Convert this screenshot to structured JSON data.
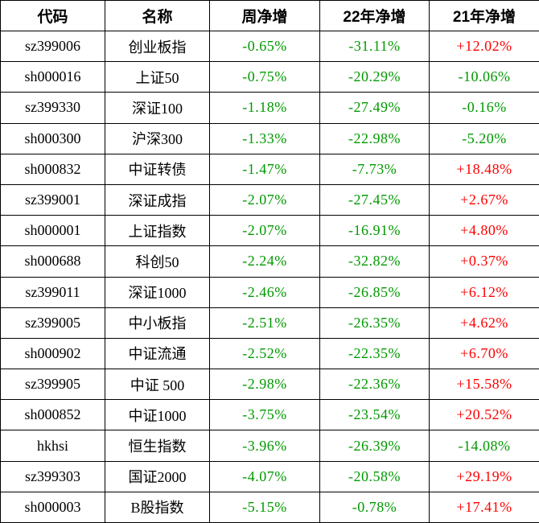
{
  "colors": {
    "positive": "#fe0000",
    "negative": "#009900",
    "text": "#000000",
    "border": "#000000",
    "background": "#ffffff"
  },
  "chart_data": {
    "type": "table",
    "title": "",
    "columns": [
      "代码",
      "名称",
      "周净增",
      "22年净增",
      "21年净增"
    ],
    "rows": [
      [
        "sz399006",
        "创业板指",
        "-0.65%",
        "-31.11%",
        "+12.02%"
      ],
      [
        "sh000016",
        "上证50",
        "-0.75%",
        "-20.29%",
        "-10.06%"
      ],
      [
        "sz399330",
        "深证100",
        "-1.18%",
        "-27.49%",
        "-0.16%"
      ],
      [
        "sh000300",
        "沪深300",
        "-1.33%",
        "-22.98%",
        "-5.20%"
      ],
      [
        "sh000832",
        "中证转债",
        "-1.47%",
        "-7.73%",
        "+18.48%"
      ],
      [
        "sz399001",
        "深证成指",
        "-2.07%",
        "-27.45%",
        "+2.67%"
      ],
      [
        "sh000001",
        "上证指数",
        "-2.07%",
        "-16.91%",
        "+4.80%"
      ],
      [
        "sh000688",
        "科创50",
        "-2.24%",
        "-32.82%",
        "+0.37%"
      ],
      [
        "sz399011",
        "深证1000",
        "-2.46%",
        "-26.85%",
        "+6.12%"
      ],
      [
        "sz399005",
        "中小板指",
        "-2.51%",
        "-26.35%",
        "+4.62%"
      ],
      [
        "sh000902",
        "中证流通",
        "-2.52%",
        "-22.35%",
        "+6.70%"
      ],
      [
        "sz399905",
        "中证 500",
        "-2.98%",
        "-22.36%",
        "+15.58%"
      ],
      [
        "sh000852",
        "中证1000",
        "-3.75%",
        "-23.54%",
        "+20.52%"
      ],
      [
        "hkhsi",
        "恒生指数",
        "-3.96%",
        "-26.39%",
        "-14.08%"
      ],
      [
        "sz399303",
        "国证2000",
        "-4.07%",
        "-20.58%",
        "+29.19%"
      ],
      [
        "sh000003",
        "B股指数",
        "-5.15%",
        "-0.78%",
        "+17.41%"
      ]
    ],
    "layout": {
      "grid": true,
      "value_color_rule": "values starting with '+' are red (positive), values starting with '-' are green (negative)"
    }
  }
}
